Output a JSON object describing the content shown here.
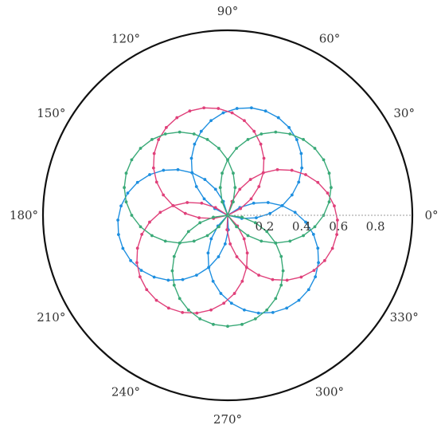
{
  "chart_data": {
    "type": "line",
    "subtype": "polar",
    "title": "",
    "angle_ticks": [
      {
        "angle": 0,
        "label": "0°"
      },
      {
        "angle": 30,
        "label": "30°"
      },
      {
        "angle": 60,
        "label": "60°"
      },
      {
        "angle": 90,
        "label": "90°"
      },
      {
        "angle": 120,
        "label": "120°"
      },
      {
        "angle": 150,
        "label": "150°"
      },
      {
        "angle": 180,
        "label": "180°"
      },
      {
        "angle": 210,
        "label": "210°"
      },
      {
        "angle": 240,
        "label": "240°"
      },
      {
        "angle": 270,
        "label": "270°"
      },
      {
        "angle": 300,
        "label": "300°"
      },
      {
        "angle": 330,
        "label": "330°"
      }
    ],
    "radial_ticks": [
      {
        "value": 0.2,
        "label": "0.2"
      },
      {
        "value": 0.4,
        "label": "0.4"
      },
      {
        "value": 0.6,
        "label": "0.6"
      },
      {
        "value": 0.8,
        "label": "0.8"
      }
    ],
    "rlim": [
      0,
      1
    ],
    "grid": false,
    "legend": "none",
    "series": [
      {
        "color": "#1e8fe0",
        "lobe_centers_deg": [
          -50,
          70,
          190
        ],
        "amplitude": 0.6
      },
      {
        "color": "#e0407a",
        "lobe_centers_deg": [
          -10,
          110,
          230
        ],
        "amplitude": 0.6
      },
      {
        "color": "#3aaa78",
        "lobe_centers_deg": [
          30,
          150,
          270
        ],
        "amplitude": 0.6
      }
    ]
  }
}
